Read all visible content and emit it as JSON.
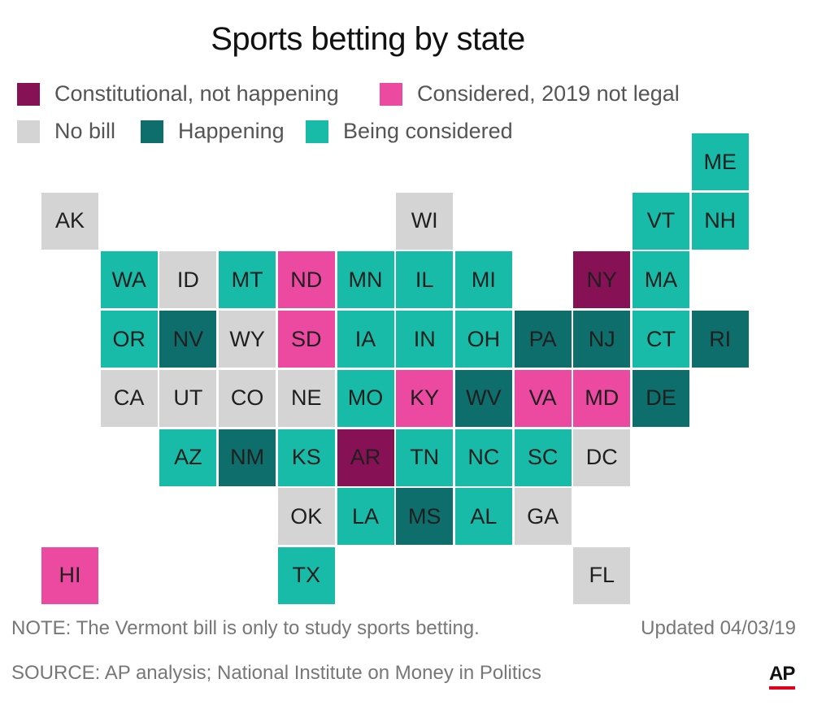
{
  "title": "Sports betting by state",
  "colors": {
    "constitutional": "#861154",
    "considered_not_legal": "#ec4aa0",
    "no_bill": "#d4d4d4",
    "happening": "#0d6e6c",
    "being_considered": "#18bba7"
  },
  "legend": [
    {
      "key": "constitutional",
      "label": "Constitutional, not happening"
    },
    {
      "key": "considered_not_legal",
      "label": "Considered, 2019 not legal"
    },
    {
      "key": "no_bill",
      "label": "No bill"
    },
    {
      "key": "happening",
      "label": "Happening"
    },
    {
      "key": "being_considered",
      "label": "Being considered"
    }
  ],
  "states": [
    {
      "abbr": "ME",
      "status": "being_considered",
      "row": 0,
      "col": 11
    },
    {
      "abbr": "AK",
      "status": "no_bill",
      "row": 1,
      "col": 0
    },
    {
      "abbr": "WI",
      "status": "no_bill",
      "row": 1,
      "col": 6
    },
    {
      "abbr": "VT",
      "status": "being_considered",
      "row": 1,
      "col": 10
    },
    {
      "abbr": "NH",
      "status": "being_considered",
      "row": 1,
      "col": 11
    },
    {
      "abbr": "WA",
      "status": "being_considered",
      "row": 2,
      "col": 1
    },
    {
      "abbr": "ID",
      "status": "no_bill",
      "row": 2,
      "col": 2
    },
    {
      "abbr": "MT",
      "status": "being_considered",
      "row": 2,
      "col": 3
    },
    {
      "abbr": "ND",
      "status": "considered_not_legal",
      "row": 2,
      "col": 4
    },
    {
      "abbr": "MN",
      "status": "being_considered",
      "row": 2,
      "col": 5
    },
    {
      "abbr": "IL",
      "status": "being_considered",
      "row": 2,
      "col": 6
    },
    {
      "abbr": "MI",
      "status": "being_considered",
      "row": 2,
      "col": 7
    },
    {
      "abbr": "NY",
      "status": "constitutional",
      "row": 2,
      "col": 9
    },
    {
      "abbr": "MA",
      "status": "being_considered",
      "row": 2,
      "col": 10
    },
    {
      "abbr": "OR",
      "status": "being_considered",
      "row": 3,
      "col": 1
    },
    {
      "abbr": "NV",
      "status": "happening",
      "row": 3,
      "col": 2
    },
    {
      "abbr": "WY",
      "status": "no_bill",
      "row": 3,
      "col": 3
    },
    {
      "abbr": "SD",
      "status": "considered_not_legal",
      "row": 3,
      "col": 4
    },
    {
      "abbr": "IA",
      "status": "being_considered",
      "row": 3,
      "col": 5
    },
    {
      "abbr": "IN",
      "status": "being_considered",
      "row": 3,
      "col": 6
    },
    {
      "abbr": "OH",
      "status": "being_considered",
      "row": 3,
      "col": 7
    },
    {
      "abbr": "PA",
      "status": "happening",
      "row": 3,
      "col": 8
    },
    {
      "abbr": "NJ",
      "status": "happening",
      "row": 3,
      "col": 9
    },
    {
      "abbr": "CT",
      "status": "being_considered",
      "row": 3,
      "col": 10
    },
    {
      "abbr": "RI",
      "status": "happening",
      "row": 3,
      "col": 11
    },
    {
      "abbr": "CA",
      "status": "no_bill",
      "row": 4,
      "col": 1
    },
    {
      "abbr": "UT",
      "status": "no_bill",
      "row": 4,
      "col": 2
    },
    {
      "abbr": "CO",
      "status": "no_bill",
      "row": 4,
      "col": 3
    },
    {
      "abbr": "NE",
      "status": "no_bill",
      "row": 4,
      "col": 4
    },
    {
      "abbr": "MO",
      "status": "being_considered",
      "row": 4,
      "col": 5
    },
    {
      "abbr": "KY",
      "status": "considered_not_legal",
      "row": 4,
      "col": 6
    },
    {
      "abbr": "WV",
      "status": "happening",
      "row": 4,
      "col": 7
    },
    {
      "abbr": "VA",
      "status": "considered_not_legal",
      "row": 4,
      "col": 8
    },
    {
      "abbr": "MD",
      "status": "considered_not_legal",
      "row": 4,
      "col": 9
    },
    {
      "abbr": "DE",
      "status": "happening",
      "row": 4,
      "col": 10
    },
    {
      "abbr": "AZ",
      "status": "being_considered",
      "row": 5,
      "col": 2
    },
    {
      "abbr": "NM",
      "status": "happening",
      "row": 5,
      "col": 3
    },
    {
      "abbr": "KS",
      "status": "being_considered",
      "row": 5,
      "col": 4
    },
    {
      "abbr": "AR",
      "status": "constitutional",
      "row": 5,
      "col": 5
    },
    {
      "abbr": "TN",
      "status": "being_considered",
      "row": 5,
      "col": 6
    },
    {
      "abbr": "NC",
      "status": "being_considered",
      "row": 5,
      "col": 7
    },
    {
      "abbr": "SC",
      "status": "being_considered",
      "row": 5,
      "col": 8
    },
    {
      "abbr": "DC",
      "status": "no_bill",
      "row": 5,
      "col": 9
    },
    {
      "abbr": "OK",
      "status": "no_bill",
      "row": 6,
      "col": 4
    },
    {
      "abbr": "LA",
      "status": "being_considered",
      "row": 6,
      "col": 5
    },
    {
      "abbr": "MS",
      "status": "happening",
      "row": 6,
      "col": 6
    },
    {
      "abbr": "AL",
      "status": "being_considered",
      "row": 6,
      "col": 7
    },
    {
      "abbr": "GA",
      "status": "no_bill",
      "row": 6,
      "col": 8
    },
    {
      "abbr": "HI",
      "status": "considered_not_legal",
      "row": 7,
      "col": 0
    },
    {
      "abbr": "TX",
      "status": "being_considered",
      "row": 7,
      "col": 4
    },
    {
      "abbr": "FL",
      "status": "no_bill",
      "row": 7,
      "col": 9
    }
  ],
  "note": "NOTE: The Vermont bill is only to study sports betting.",
  "updated": "Updated 04/03/19",
  "source": "SOURCE: AP analysis; National Institute on Money in Politics",
  "logo_text": "AP"
}
